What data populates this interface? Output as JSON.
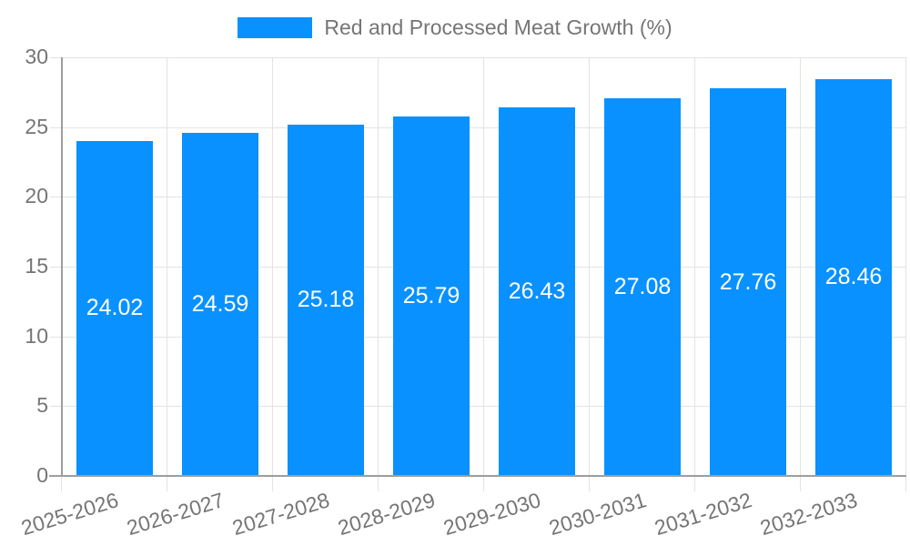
{
  "chart_data": {
    "type": "bar",
    "title": "Red and Processed Meat Growth (%)",
    "legend": [
      "Red and Processed Meat Growth (%)"
    ],
    "legend_position": "top",
    "categories": [
      "2025-2026",
      "2026-2027",
      "2027-2028",
      "2028-2029",
      "2029-2030",
      "2030-2031",
      "2031-2032",
      "2032-2033"
    ],
    "values": [
      24.02,
      24.59,
      25.18,
      25.79,
      26.43,
      27.08,
      27.76,
      28.46
    ],
    "value_labels": [
      "24.02",
      "24.59",
      "25.18",
      "25.79",
      "26.43",
      "27.08",
      "27.76",
      "28.46"
    ],
    "xlabel": "",
    "ylabel": "",
    "ylim": [
      0,
      30
    ],
    "yticks": [
      0,
      5,
      10,
      15,
      20,
      25,
      30
    ],
    "grid": true,
    "x_label_rotation_deg": -17,
    "colors": {
      "bar": "#0991ff",
      "value_label": "#ffffff",
      "axis_line": "#9e9e9e",
      "gridline": "#e3e3e3",
      "text": "#757575",
      "background": "#ffffff"
    }
  }
}
